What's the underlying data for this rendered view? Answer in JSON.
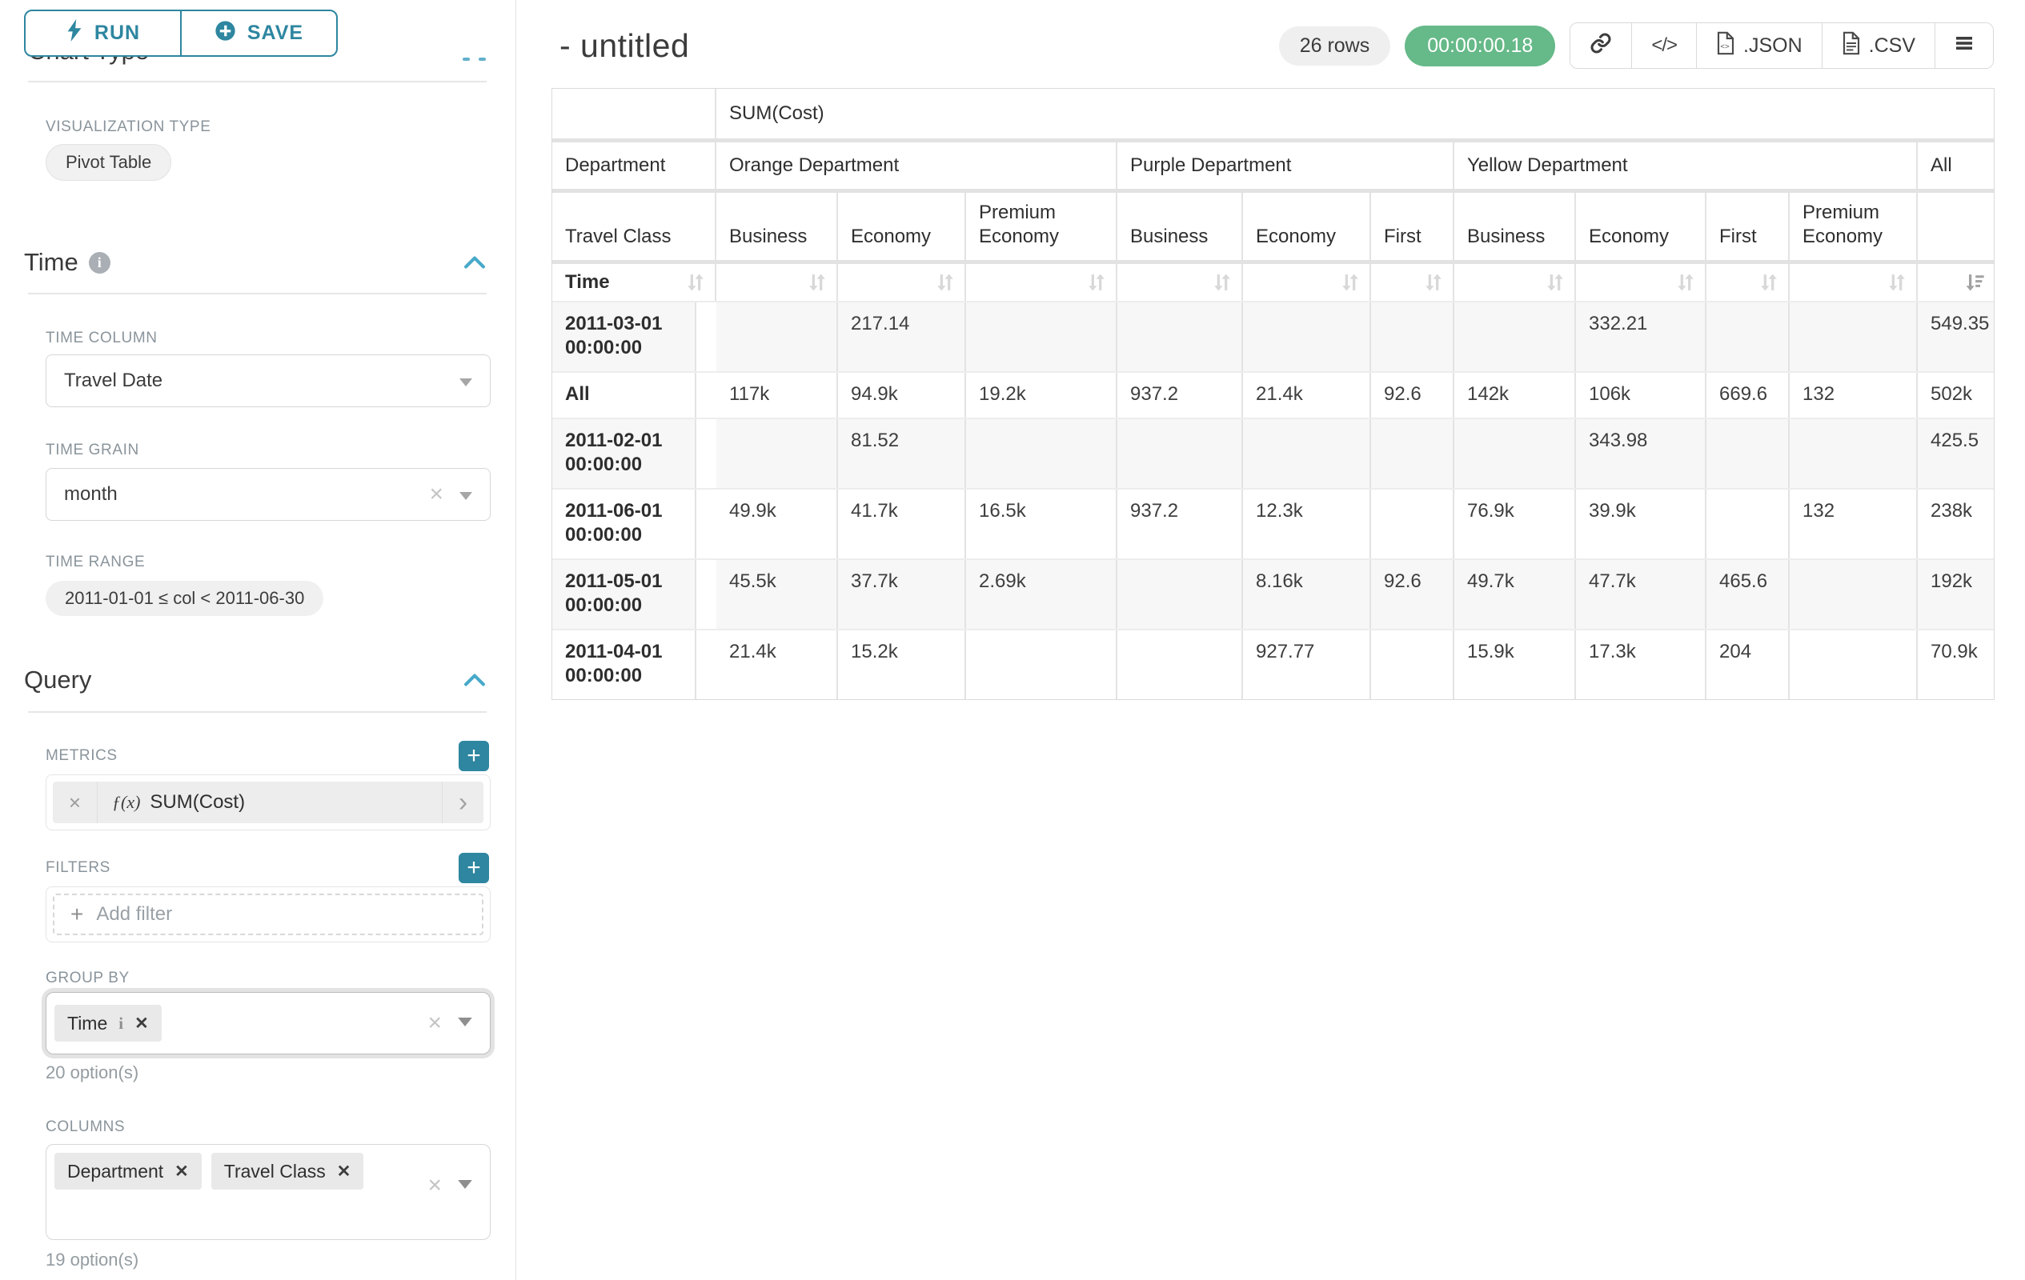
{
  "sidebar": {
    "run_label": "RUN",
    "save_label": "SAVE",
    "chart_type_heading": "Chart Type",
    "visualization": {
      "label": "VISUALIZATION TYPE",
      "value": "Pivot Table"
    },
    "time": {
      "title": "Time",
      "time_column_label": "TIME COLUMN",
      "time_column_value": "Travel Date",
      "time_grain_label": "TIME GRAIN",
      "time_grain_value": "month",
      "time_range_label": "TIME RANGE",
      "time_range_value": "2011-01-01 ≤ col < 2011-06-30"
    },
    "query": {
      "title": "Query",
      "metrics_label": "METRICS",
      "metric_fx": "ƒ(x)",
      "metric_name": "SUM(Cost)",
      "filters_label": "FILTERS",
      "add_filter_label": "Add filter",
      "group_by_label": "GROUP BY",
      "group_by_chips": [
        "Time"
      ],
      "group_by_options": "20 option(s)",
      "columns_label": "COLUMNS",
      "columns_chips": [
        "Department",
        "Travel Class"
      ],
      "columns_options": "19 option(s)"
    }
  },
  "header": {
    "title": "- untitled",
    "rows_badge": "26 rows",
    "timer_badge": "00:00:00.18",
    "export_json_label": ".JSON",
    "export_csv_label": ".CSV"
  },
  "pivot": {
    "metric_header": "SUM(Cost)",
    "row_dim_label": "Department",
    "col_dim_label": "Travel Class",
    "time_label": "Time",
    "col_groups": [
      {
        "name": "Orange Department",
        "cols": [
          "Business",
          "Economy",
          "Premium Economy"
        ]
      },
      {
        "name": "Purple Department",
        "cols": [
          "Business",
          "Economy",
          "First"
        ]
      },
      {
        "name": "Yellow Department",
        "cols": [
          "Business",
          "Economy",
          "First",
          "Premium Economy"
        ]
      },
      {
        "name": "All",
        "cols": [
          ""
        ]
      }
    ],
    "rows": [
      {
        "label": "2011-03-01 00:00:00",
        "values": [
          "",
          "217.14",
          "",
          "",
          "",
          "",
          "",
          "332.21",
          "",
          "",
          "549.35"
        ]
      },
      {
        "label": "All",
        "values": [
          "117k",
          "94.9k",
          "19.2k",
          "937.2",
          "21.4k",
          "92.6",
          "142k",
          "106k",
          "669.6",
          "132",
          "502k"
        ]
      },
      {
        "label": "2011-02-01 00:00:00",
        "values": [
          "",
          "81.52",
          "",
          "",
          "",
          "",
          "",
          "343.98",
          "",
          "",
          "425.5"
        ]
      },
      {
        "label": "2011-06-01 00:00:00",
        "values": [
          "49.9k",
          "41.7k",
          "16.5k",
          "937.2",
          "12.3k",
          "",
          "76.9k",
          "39.9k",
          "",
          "132",
          "238k"
        ]
      },
      {
        "label": "2011-05-01 00:00:00",
        "values": [
          "45.5k",
          "37.7k",
          "2.69k",
          "",
          "8.16k",
          "92.6",
          "49.7k",
          "47.7k",
          "465.6",
          "",
          "192k"
        ]
      },
      {
        "label": "2011-04-01 00:00:00",
        "values": [
          "21.4k",
          "15.2k",
          "",
          "",
          "927.77",
          "",
          "15.9k",
          "17.3k",
          "204",
          "",
          "70.9k"
        ]
      }
    ]
  }
}
